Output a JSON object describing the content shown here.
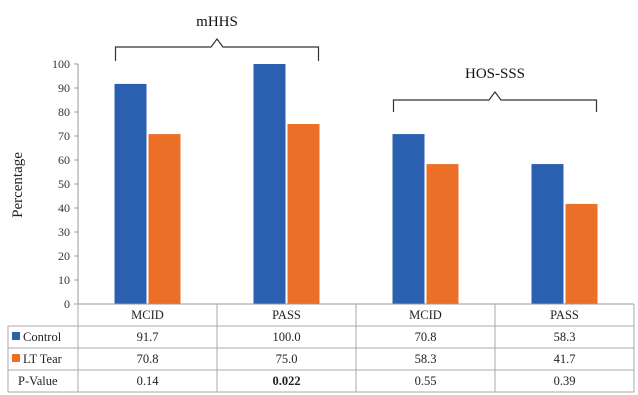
{
  "chart_data": {
    "type": "bar",
    "ylabel": "Percentage",
    "ylim": [
      0,
      100
    ],
    "yticks": [
      0,
      10,
      20,
      30,
      40,
      50,
      60,
      70,
      80,
      90,
      100
    ],
    "categories": [
      "MCID",
      "PASS",
      "MCID",
      "PASS"
    ],
    "series": [
      {
        "name": "Control",
        "color": "#2b5faf",
        "values": [
          91.7,
          100.0,
          70.8,
          58.3
        ]
      },
      {
        "name": "LT Tear",
        "color": "#ec6f28",
        "values": [
          70.8,
          75.0,
          58.3,
          41.7
        ]
      }
    ],
    "annotations": [
      {
        "label": "mHHS",
        "spans_categories": [
          0,
          1
        ]
      },
      {
        "label": "HOS-SSS",
        "spans_categories": [
          2,
          3
        ]
      }
    ],
    "table": {
      "rows": [
        {
          "label": "Control",
          "color": "#2b5faf",
          "cells": [
            "91.7",
            "100.0",
            "70.8",
            "58.3"
          ],
          "bold": [
            false,
            false,
            false,
            false
          ]
        },
        {
          "label": "LT Tear",
          "color": "#ec6f28",
          "cells": [
            "70.8",
            "75.0",
            "58.3",
            "41.7"
          ],
          "bold": [
            false,
            false,
            false,
            false
          ]
        },
        {
          "label": "P-Value",
          "color": null,
          "cells": [
            "0.14",
            "0.022",
            "0.55",
            "0.39"
          ],
          "bold": [
            false,
            true,
            false,
            false
          ]
        }
      ]
    },
    "grid": false
  }
}
